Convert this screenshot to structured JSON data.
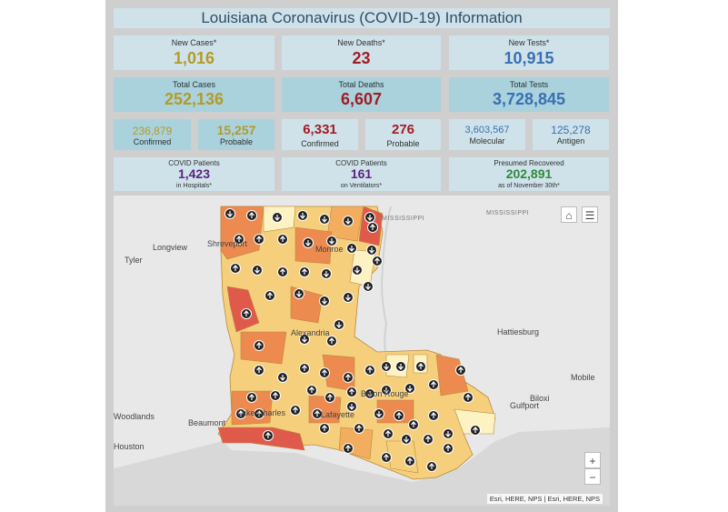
{
  "title": "Louisiana Coronavirus (COVID-19) Information",
  "colors": {
    "cases": "#b59a28",
    "deaths": "#a11c25",
    "tests": "#3a6fb3",
    "hospital": "#5a2280",
    "recovered": "#2f8a3b",
    "panel_light": "#cfe2ea",
    "panel_dark": "#a9d2dd"
  },
  "new_cases": {
    "label": "New Cases*",
    "value": "1,016"
  },
  "new_deaths": {
    "label": "New Deaths*",
    "value": "23"
  },
  "new_tests": {
    "label": "New Tests*",
    "value": "10,915"
  },
  "total_cases": {
    "label": "Total Cases",
    "value": "252,136"
  },
  "total_deaths": {
    "label": "Total Deaths",
    "value": "6,607"
  },
  "total_tests": {
    "label": "Total Tests",
    "value": "3,728,845"
  },
  "cases_confirmed": {
    "label": "Confirmed",
    "value": "236,879"
  },
  "cases_probable": {
    "label": "Probable",
    "value": "15,257"
  },
  "deaths_confirmed": {
    "label": "Confirmed",
    "value": "6,331"
  },
  "deaths_probable": {
    "label": "Probable",
    "value": "276"
  },
  "tests_molecular": {
    "label": "Molecular",
    "value": "3,603,567"
  },
  "tests_antigen": {
    "label": "Antigen",
    "value": "125,278"
  },
  "hospitalized": {
    "label_top": "COVID Patients",
    "value": "1,423",
    "label_bottom": "in Hospitals*"
  },
  "ventilators": {
    "label_top": "COVID Patients",
    "value": "161",
    "label_bottom": "on Ventilators*"
  },
  "recovered": {
    "label_top": "Presumed Recovered",
    "value": "202,891",
    "label_bottom": "as of November 30th*"
  },
  "map": {
    "places": {
      "longview": "Longview",
      "tyler": "Tyler",
      "shreveport": "Shreveport",
      "monroe": "Monroe",
      "mississippi_river": "MISSISSIPPI",
      "mississippi_state": "MISSISSIPPI",
      "alexandria": "Alexandria",
      "hattiesburg": "Hattiesburg",
      "mobile": "Mobile",
      "biloxi": "Biloxi",
      "gulfport": "Gulfport",
      "woodlands": "Woodlands",
      "beaumont": "Beaumont",
      "houston": "Houston",
      "lake_charles": "Lake Charles",
      "lafayette": "Lafayette",
      "baton_rouge": "Baton Rouge"
    },
    "home_icon": "home-icon",
    "legend_icon": "list-icon",
    "zoom_in": "+",
    "zoom_out": "−",
    "attribution": "Esri, HERE, NPS | Esri, HERE, NPS",
    "trend_colors": {
      "high": "#e05a4c",
      "elevated": "#ec8a4f",
      "moderate": "#f2ad5e",
      "low": "#f6cf7d",
      "minimal": "#fdf2c2"
    }
  }
}
